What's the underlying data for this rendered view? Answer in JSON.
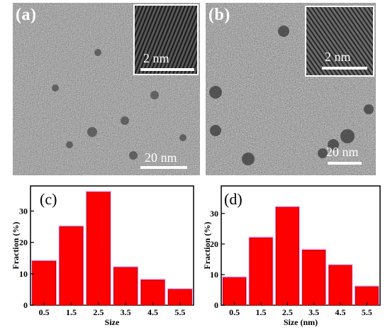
{
  "panels": {
    "a": {
      "label": "(a)",
      "inset_scale": "2 nm",
      "main_scale": "20 nm"
    },
    "b": {
      "label": "(b)",
      "inset_scale": "2 nm",
      "main_scale": "20 nm"
    }
  },
  "colors": {
    "bar": "#ff0000",
    "bar_edge": "#b00000",
    "bar_glow": "#ff99ff"
  },
  "chart_data": [
    {
      "type": "bar",
      "panel_label": "(c)",
      "categories": [
        "0.5",
        "1.5",
        "2.5",
        "3.5",
        "4.5",
        "5.5"
      ],
      "values": [
        14,
        25,
        36,
        12,
        8,
        5
      ],
      "xlabel": "Size",
      "ylabel": "Fraction (%)",
      "ylim": [
        0,
        38
      ],
      "yticks": [
        0,
        10,
        20,
        30
      ]
    },
    {
      "type": "bar",
      "panel_label": "(d)",
      "categories": [
        "0.5",
        "1.5",
        "2.5",
        "3.5",
        "4.5",
        "5.5"
      ],
      "values": [
        9,
        22,
        32,
        18,
        13,
        6
      ],
      "xlabel": "Size (nm)",
      "ylabel": "Fraction (%)",
      "ylim": [
        0,
        39
      ],
      "yticks": [
        0,
        10,
        20,
        30
      ]
    }
  ]
}
